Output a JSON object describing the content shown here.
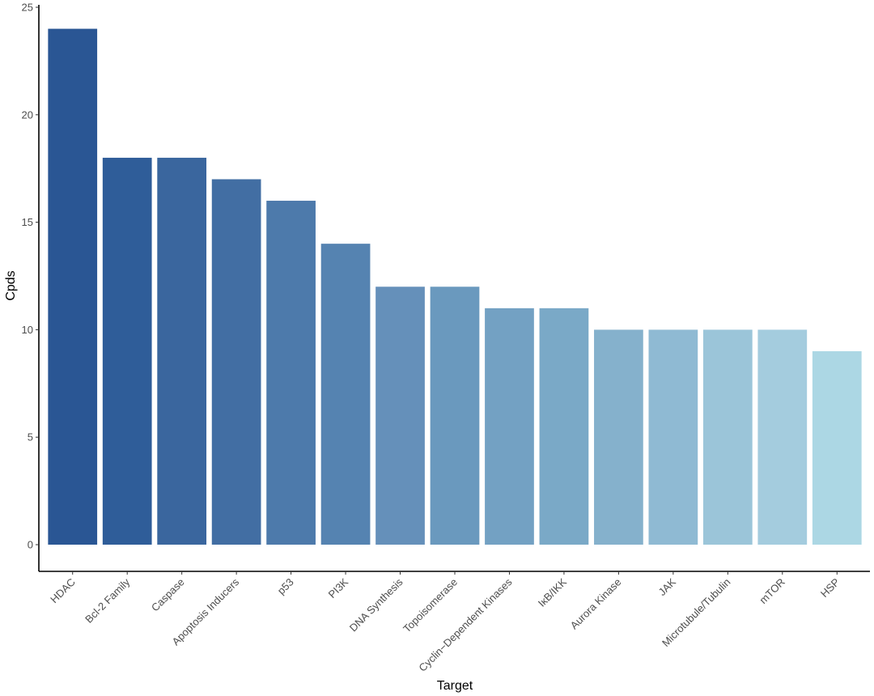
{
  "chart_data": {
    "type": "bar",
    "xlabel": "Target",
    "ylabel": "Cpds",
    "ylim": [
      0,
      25
    ],
    "yticks": [
      0,
      5,
      10,
      15,
      20,
      25
    ],
    "grid": false,
    "legend": "none",
    "categories": [
      "HDAC",
      "Bcl-2 Family",
      "Caspase",
      "Apoptosis Inducers",
      "p53",
      "PI3K",
      "DNA Synthesis",
      "Topoisomerase",
      "Cyclin−Dependent Kinases",
      "IκB/IKK",
      "Aurora Kinase",
      "JAK",
      "Microtubule/Tubulin",
      "mTOR",
      "HSP"
    ],
    "values": [
      24,
      18,
      18,
      17,
      16,
      14,
      12,
      12,
      11,
      11,
      10,
      10,
      10,
      10,
      9
    ],
    "colors": [
      "#2a5694",
      "#2f5d99",
      "#3a669e",
      "#426ea3",
      "#4d7aab",
      "#5583b1",
      "#6590ba",
      "#6a99be",
      "#73a1c3",
      "#7aa9c7",
      "#85b1cc",
      "#8fbad3",
      "#9bc5d9",
      "#a4ccde",
      "#acd7e4"
    ]
  }
}
